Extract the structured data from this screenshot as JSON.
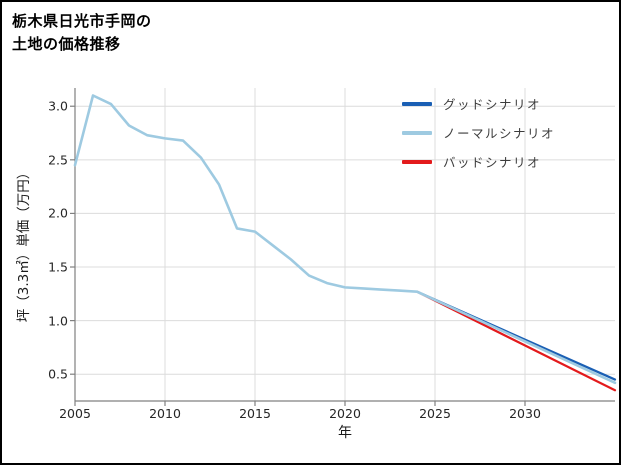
{
  "page": {
    "title_line1": "栃木県日光市手岡の",
    "title_line2": "土地の価格推移"
  },
  "chart_data": {
    "type": "line",
    "title": "栃木県日光市手岡の土地の価格推移",
    "xlabel": "年",
    "ylabel": "坪（3.3㎡）単価（万円）",
    "xlim": [
      2005,
      2035
    ],
    "ylim": [
      0.25,
      3.17
    ],
    "xticks": [
      2005,
      2010,
      2015,
      2020,
      2025,
      2030
    ],
    "yticks": [
      0.5,
      1.0,
      1.5,
      2.0,
      2.5,
      3.0
    ],
    "grid": true,
    "grid_color": "#dcdcdc",
    "axis_color": "#808080",
    "legend_position": "top-right",
    "legend": [
      {
        "id": "good",
        "label": "グッドシナリオ",
        "color": "#1a5fb4"
      },
      {
        "id": "normal",
        "label": "ノーマルシナリオ",
        "color": "#9ecae1"
      },
      {
        "id": "bad",
        "label": "バッドシナリオ",
        "color": "#e31a1c"
      }
    ],
    "series": [
      {
        "id": "good",
        "name": "グッドシナリオ",
        "color": "#1a5fb4",
        "width": 2.2,
        "x": [
          2024,
          2035
        ],
        "values": [
          1.27,
          0.45
        ]
      },
      {
        "id": "bad",
        "name": "バッドシナリオ",
        "color": "#e31a1c",
        "width": 2.2,
        "x": [
          2024,
          2035
        ],
        "values": [
          1.27,
          0.35
        ]
      },
      {
        "id": "normal",
        "name": "ノーマルシナリオ",
        "color": "#9ecae1",
        "width": 2.6,
        "x": [
          2005,
          2006,
          2007,
          2008,
          2009,
          2010,
          2011,
          2012,
          2013,
          2014,
          2015,
          2016,
          2017,
          2018,
          2019,
          2020,
          2021,
          2022,
          2023,
          2024,
          2035
        ],
        "values": [
          2.45,
          3.1,
          3.02,
          2.82,
          2.73,
          2.7,
          2.68,
          2.52,
          2.27,
          1.86,
          1.83,
          1.7,
          1.57,
          1.42,
          1.35,
          1.31,
          1.3,
          1.29,
          1.28,
          1.27,
          0.42
        ]
      }
    ]
  }
}
